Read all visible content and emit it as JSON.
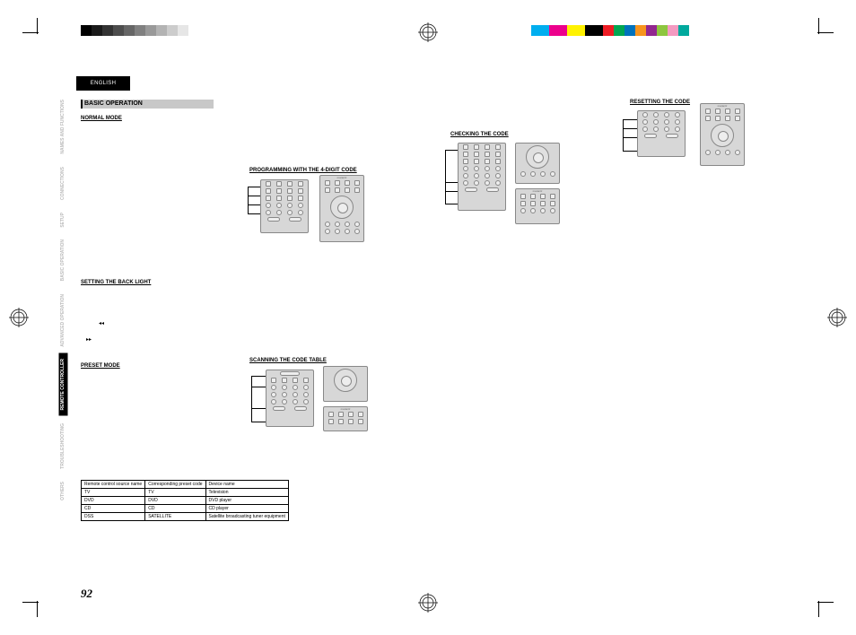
{
  "language_tab": "ENGLISH",
  "side_tabs": [
    {
      "label": "NAMES AND\nFUNCTIONS",
      "active": false
    },
    {
      "label": "CONNECTIONS",
      "active": false
    },
    {
      "label": "SETUP",
      "active": false
    },
    {
      "label": "BASIC\nOPERATION",
      "active": false
    },
    {
      "label": "ADVANCED\nOPERATION",
      "active": false
    },
    {
      "label": "REMOTE\nCONTROLLER",
      "active": true
    },
    {
      "label": "TROUBLESHOOTING",
      "active": false
    },
    {
      "label": "OTHERS",
      "active": false
    }
  ],
  "section_title": "BASIC OPERATION",
  "headings": {
    "normal_mode": "NORMAL MODE",
    "programming": "PROGRAMMING WITH THE 4-DIGIT CODE",
    "setting_backlight": "SETTING THE BACK LIGHT",
    "preset_mode": "PRESET MODE",
    "scanning": "SCANNING THE CODE TABLE",
    "checking": "CHECKING THE CODE",
    "resetting": "RESETTING THE CODE"
  },
  "preset_table": {
    "columns": [
      "Remote control source name",
      "Corresponding preset code",
      "Device name"
    ],
    "rows": [
      [
        "TV",
        "TV",
        "Television"
      ],
      [
        "DVD",
        "DVD",
        "DVD player"
      ],
      [
        "CD",
        "CD",
        "CD player"
      ],
      [
        "DSS",
        "SATELLITE",
        "Satellite broadcasting tuner equipment"
      ]
    ]
  },
  "page_number": "92",
  "colorbars": {
    "grayscale": [
      "#000000",
      "#1a1a1a",
      "#333333",
      "#4d4d4d",
      "#666666",
      "#808080",
      "#999999",
      "#b3b3b3",
      "#cccccc",
      "#e6e6e6",
      "#ffffff"
    ],
    "cmyk": [
      "#00aeef",
      "#ec008c",
      "#fff200",
      "#000000",
      "#ed1c24",
      "#00a651",
      "#0072bc",
      "#f7941d",
      "#92278f",
      "#8dc63f",
      "#f49ac1",
      "#00a99d"
    ]
  },
  "remote_brand": "marantz",
  "icons": {
    "prev": "◂◂",
    "next": "▸▸"
  }
}
